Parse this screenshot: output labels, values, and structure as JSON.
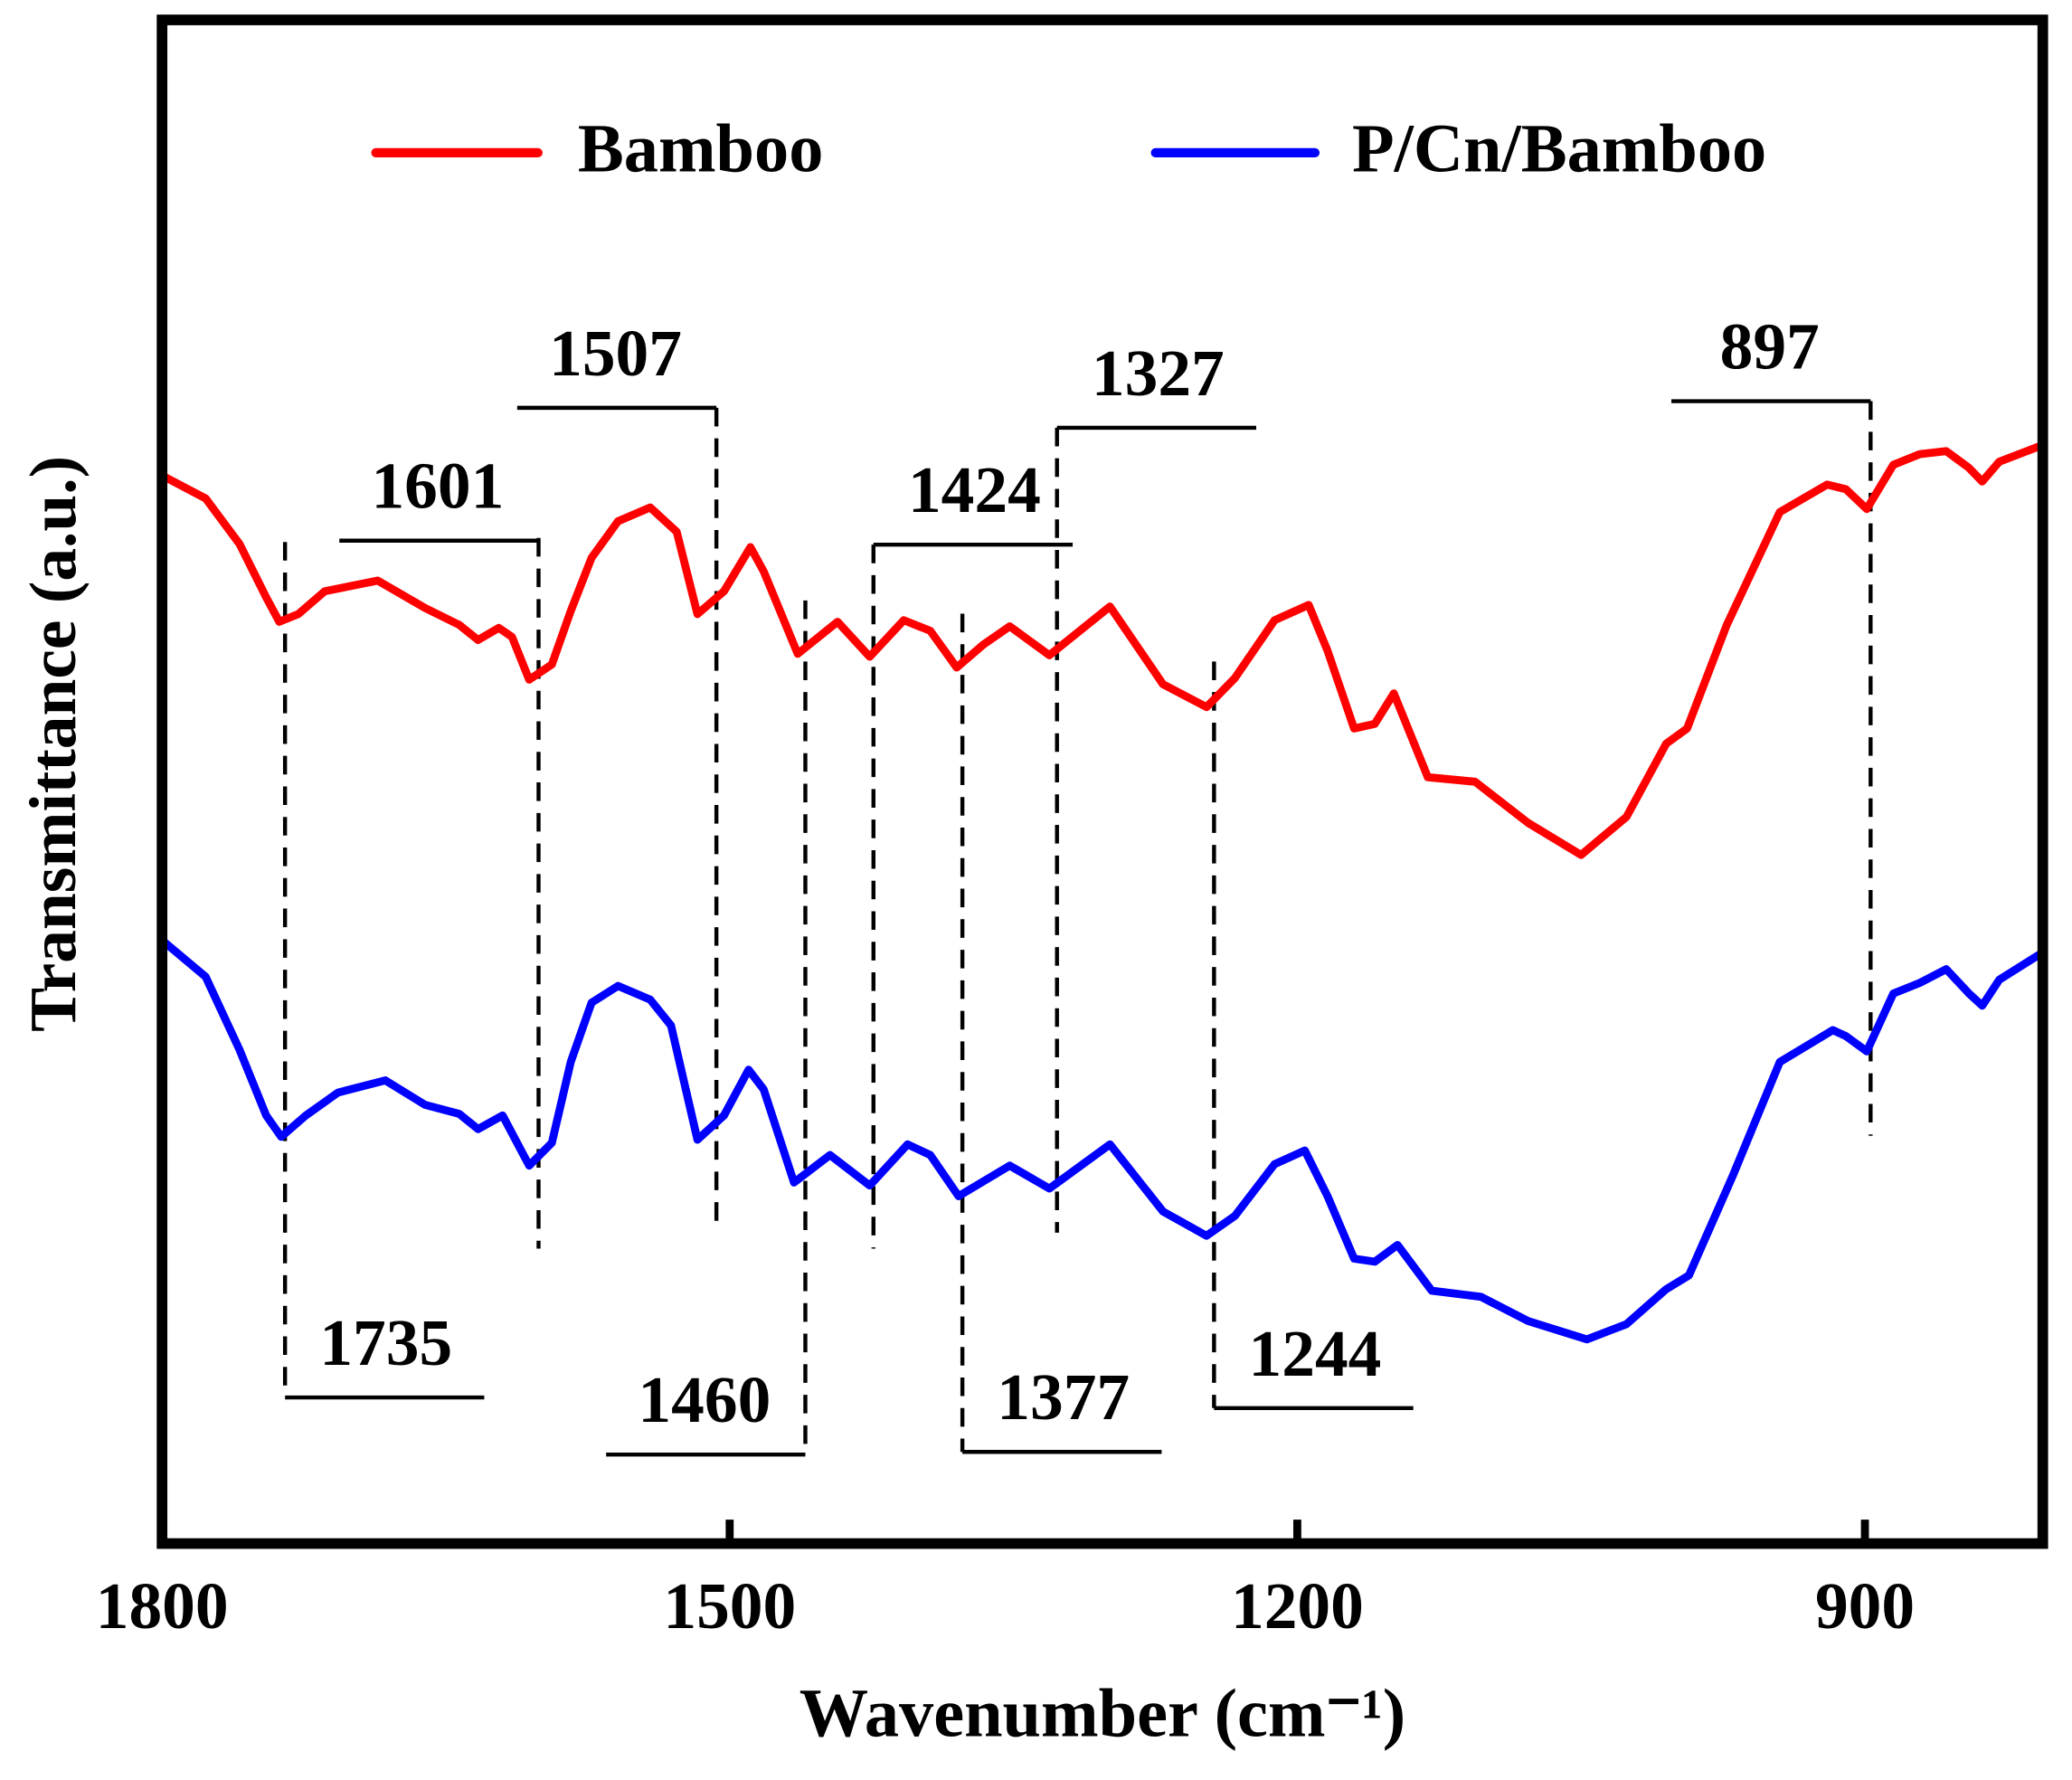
{
  "chart_data": {
    "type": "line",
    "x_label": "Wavenumber (cm⁻¹)",
    "y_label": "Transmittance (a.u.)",
    "xlim": [
      1800,
      806
    ],
    "xticks": [
      1800,
      1500,
      1200,
      900
    ],
    "ylim": [
      0,
      100
    ],
    "legend": "top",
    "series": [
      {
        "name": "Bamboo",
        "color": "#ff0000",
        "x": [
          1800,
          1777,
          1759,
          1745,
          1738,
          1728,
          1714,
          1686,
          1661,
          1643,
          1633,
          1622,
          1615,
          1606,
          1594,
          1584,
          1573,
          1559,
          1542,
          1528,
          1517,
          1503,
          1489,
          1482,
          1464,
          1443,
          1426,
          1408,
          1394,
          1380,
          1366,
          1352,
          1331,
          1299,
          1271,
          1248,
          1233,
          1212,
          1194,
          1184,
          1170,
          1159,
          1149,
          1131,
          1106,
          1078,
          1050,
          1026,
          1005,
          994,
          973,
          945,
          920,
          910,
          899,
          885,
          871,
          857,
          845,
          838,
          829,
          806
        ],
        "values": [
          70.1,
          68.6,
          65.6,
          62.1,
          60.5,
          61.0,
          62.5,
          63.2,
          61.4,
          60.3,
          59.3,
          60.1,
          59.5,
          56.7,
          57.7,
          61.2,
          64.7,
          67.1,
          68.0,
          66.4,
          61.0,
          62.5,
          65.4,
          63.8,
          58.4,
          60.5,
          58.2,
          60.6,
          59.9,
          57.5,
          59.0,
          60.2,
          58.3,
          61.5,
          56.4,
          54.9,
          56.8,
          60.6,
          61.6,
          58.6,
          53.5,
          53.8,
          55.8,
          50.3,
          50.0,
          47.3,
          45.2,
          47.7,
          52.5,
          53.5,
          60.3,
          67.7,
          69.5,
          69.2,
          67.9,
          70.8,
          71.5,
          71.7,
          70.6,
          69.7,
          71.0,
          72.1
        ]
      },
      {
        "name": "P/Cn/Bamboo",
        "color": "#0000ff",
        "x": [
          1800,
          1777,
          1759,
          1745,
          1737,
          1724,
          1707,
          1682,
          1661,
          1643,
          1633,
          1620,
          1606,
          1594,
          1584,
          1573,
          1559,
          1542,
          1531,
          1517,
          1503,
          1490,
          1482,
          1466,
          1447,
          1426,
          1406,
          1394,
          1379,
          1352,
          1331,
          1299,
          1271,
          1248,
          1233,
          1212,
          1196,
          1184,
          1170,
          1159,
          1147,
          1129,
          1103,
          1078,
          1047,
          1026,
          1005,
          993,
          970,
          945,
          917,
          910,
          899,
          885,
          871,
          857,
          845,
          838,
          829,
          806
        ],
        "values": [
          39.6,
          37.2,
          32.4,
          28.1,
          26.7,
          28.1,
          29.6,
          30.4,
          28.8,
          28.2,
          27.2,
          28.1,
          24.8,
          26.3,
          31.6,
          35.5,
          36.6,
          35.7,
          34.0,
          26.5,
          28.1,
          31.1,
          29.8,
          23.7,
          25.5,
          23.5,
          26.2,
          25.5,
          22.8,
          24.8,
          23.3,
          26.2,
          21.8,
          20.2,
          21.5,
          24.9,
          25.8,
          22.8,
          18.7,
          18.5,
          19.6,
          16.6,
          16.2,
          14.6,
          13.4,
          14.4,
          16.7,
          17.6,
          24.1,
          31.6,
          33.7,
          33.3,
          32.3,
          36.1,
          36.8,
          37.7,
          36.1,
          35.3,
          37.0,
          38.8
        ]
      }
    ],
    "peak_labels": [
      1735,
      1601,
      1507,
      1460,
      1424,
      1377,
      1327,
      1244,
      897
    ]
  }
}
